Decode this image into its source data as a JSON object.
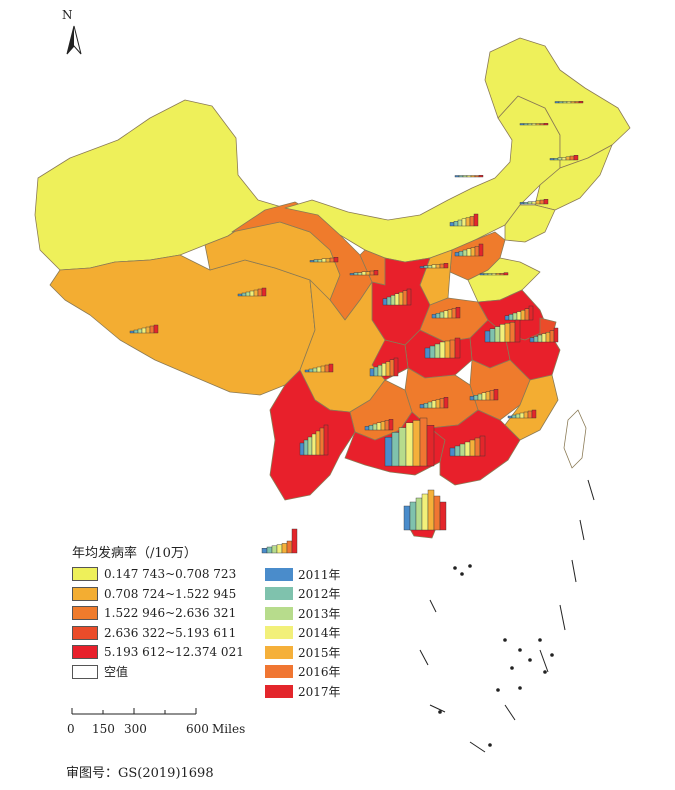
{
  "north_label": "N",
  "legend": {
    "title": "年均发病率（/10万）",
    "classes": [
      {
        "label": "0.147 743~0.708 723",
        "color": "#eef05a"
      },
      {
        "label": "0.708 724~1.522 945",
        "color": "#f3ad32"
      },
      {
        "label": "1.522 946~2.636 321",
        "color": "#ef7b2c"
      },
      {
        "label": "2.636 322~5.193 611",
        "color": "#ea4c2a"
      },
      {
        "label": "5.193 612~12.374 021",
        "color": "#e8202b"
      },
      {
        "label": "空值",
        "color": "#ffffff"
      }
    ],
    "years": [
      {
        "label": "2011年",
        "color": "#4a8ccb"
      },
      {
        "label": "2012年",
        "color": "#7fc2ad"
      },
      {
        "label": "2013年",
        "color": "#b7dc8c"
      },
      {
        "label": "2014年",
        "color": "#f2f07a"
      },
      {
        "label": "2015年",
        "color": "#f5b03a"
      },
      {
        "label": "2016年",
        "color": "#f07632"
      },
      {
        "label": "2017年",
        "color": "#e3262b"
      }
    ]
  },
  "scale_bar": {
    "labels": [
      "0",
      "150",
      "300",
      "600"
    ],
    "unit": "Miles"
  },
  "approval_number": "审图号：GS(2019)1698"
}
